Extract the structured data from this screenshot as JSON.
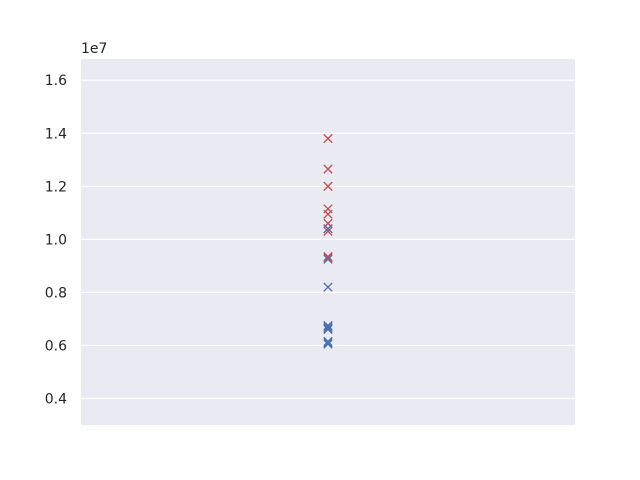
{
  "chart_data": {
    "type": "scatter",
    "title": "",
    "xlabel": "",
    "ylabel": "",
    "y_scale_offset": "1e7",
    "yticks": [
      "0.4",
      "0.6",
      "0.8",
      "1.0",
      "1.2",
      "1.4",
      "1.6"
    ],
    "ylim": [
      3000000,
      16800000
    ],
    "xlim": [
      -1,
      1
    ],
    "grid": true,
    "marker": "x",
    "series": [
      {
        "color": "#c44e52",
        "x": [
          0,
          0,
          0,
          0,
          0,
          0,
          0,
          0,
          0,
          0
        ],
        "values": [
          13800000,
          12650000,
          12000000,
          11150000,
          10950000,
          10600000,
          10400000,
          10300000,
          9350000,
          9300000
        ]
      },
      {
        "color": "#4c72b0",
        "x": [
          0,
          0,
          0,
          0,
          0,
          0,
          0,
          0,
          0,
          0
        ],
        "values": [
          10400000,
          9250000,
          8200000,
          6750000,
          6700000,
          6650000,
          6600000,
          6150000,
          6100000,
          6050000
        ]
      }
    ]
  }
}
